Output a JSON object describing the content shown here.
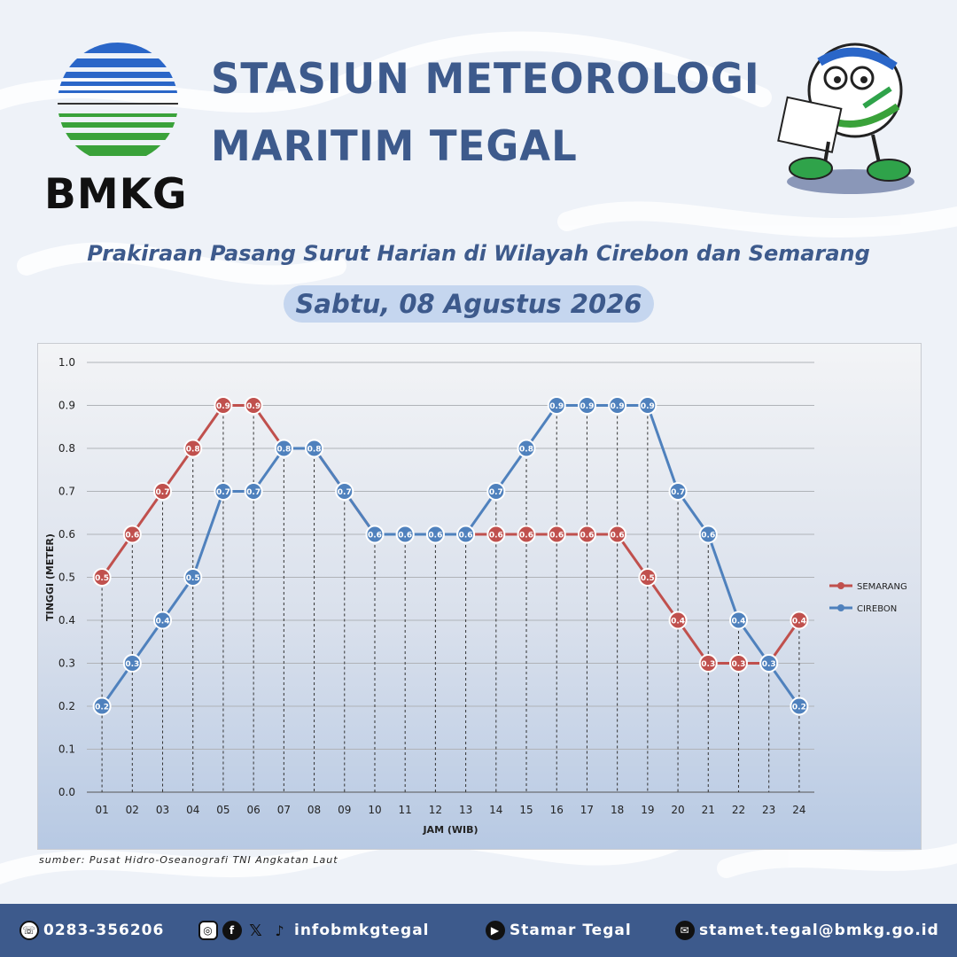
{
  "header": {
    "logo_text": "BMKG",
    "title_line1": "STASIUN METEOROLOGI",
    "title_line2": "MARITIM TEGAL",
    "subtitle": "Prakiraan Pasang Surut Harian di Wilayah Cirebon dan Semarang",
    "date": "Sabtu, 08 Agustus 2026"
  },
  "source": "sumber: Pusat Hidro-Oseanografi TNI Angkatan Laut",
  "footer": {
    "phone": "0283-356206",
    "social_handle": "infobmkgtegal",
    "youtube": "Stamar Tegal",
    "email": "stamet.tegal@bmkg.go.id"
  },
  "colors": {
    "semarang": "#c0504d",
    "cirebon": "#4f81bd",
    "brand": "#3d5a8c"
  },
  "icons": [
    "phone-icon",
    "instagram-icon",
    "facebook-icon",
    "x-icon",
    "tiktok-icon",
    "youtube-icon",
    "mail-icon"
  ],
  "chart_data": {
    "type": "line",
    "title": "",
    "xlabel": "JAM (WIB)",
    "ylabel": "TINGGI (METER)",
    "ylim": [
      0,
      1.0
    ],
    "ytick_step": 0.1,
    "grid": true,
    "legend": "right",
    "categories": [
      "01",
      "02",
      "03",
      "04",
      "05",
      "06",
      "07",
      "08",
      "09",
      "10",
      "11",
      "12",
      "13",
      "14",
      "15",
      "16",
      "17",
      "18",
      "19",
      "20",
      "21",
      "22",
      "23",
      "24"
    ],
    "series": [
      {
        "name": "SEMARANG",
        "values": [
          0.5,
          0.6,
          0.7,
          0.8,
          0.9,
          0.9,
          0.8,
          0.8,
          0.7,
          0.6,
          0.6,
          0.6,
          0.6,
          0.6,
          0.6,
          0.6,
          0.6,
          0.6,
          0.5,
          0.4,
          0.3,
          0.3,
          0.3,
          0.4
        ]
      },
      {
        "name": "CIREBON",
        "values": [
          0.2,
          0.3,
          0.4,
          0.5,
          0.7,
          0.7,
          0.8,
          0.8,
          0.7,
          0.6,
          0.6,
          0.6,
          0.6,
          0.7,
          0.8,
          0.9,
          0.9,
          0.9,
          0.9,
          0.7,
          0.6,
          0.4,
          0.3,
          0.2
        ]
      }
    ]
  }
}
